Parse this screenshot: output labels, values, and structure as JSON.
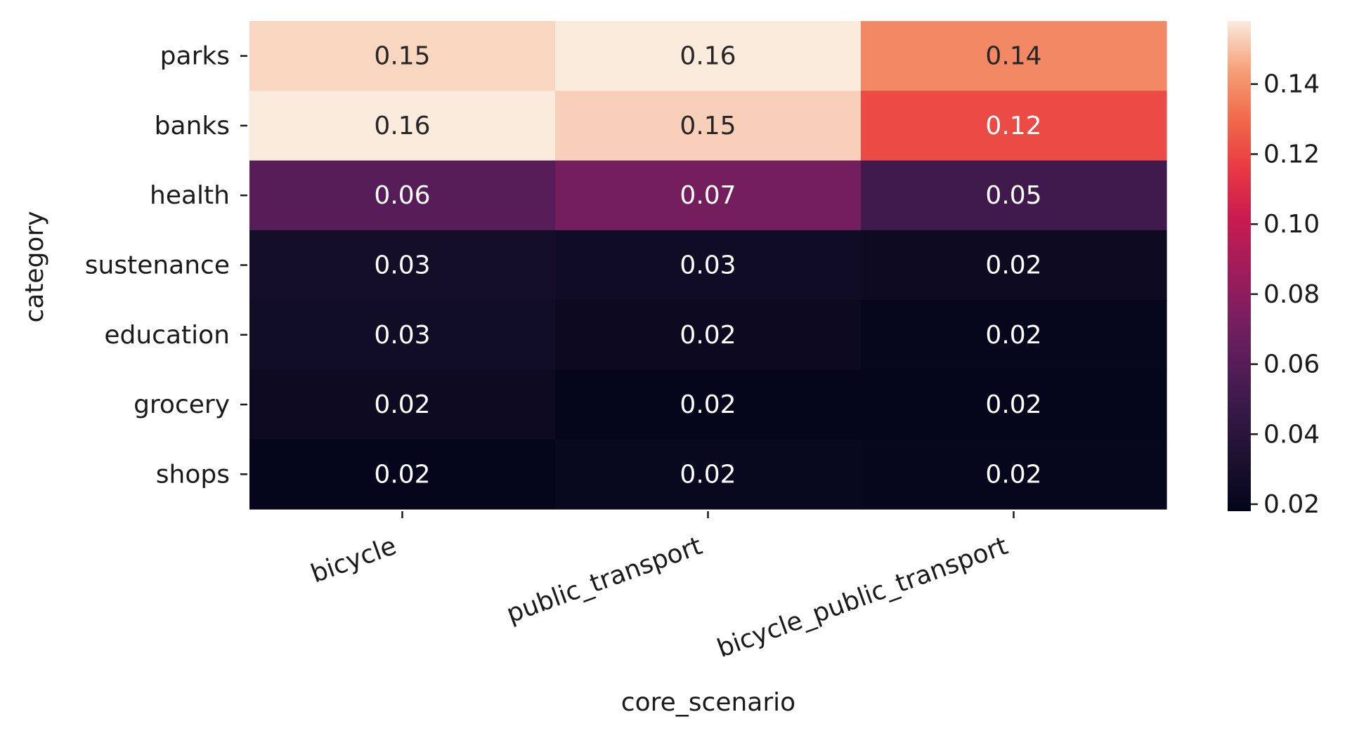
{
  "chart_data": {
    "type": "heatmap",
    "xlabel": "core_scenario",
    "ylabel": "category",
    "x_categories": [
      "bicycle",
      "public_transport",
      "bicycle_public_transport"
    ],
    "y_categories": [
      "parks",
      "banks",
      "health",
      "sustenance",
      "education",
      "grocery",
      "shops"
    ],
    "values": [
      [
        0.154,
        0.158,
        0.138
      ],
      [
        0.158,
        0.153,
        0.121
      ],
      [
        0.06,
        0.071,
        0.051
      ],
      [
        0.028,
        0.026,
        0.024
      ],
      [
        0.027,
        0.023,
        0.02
      ],
      [
        0.024,
        0.019,
        0.019
      ],
      [
        0.019,
        0.021,
        0.02
      ]
    ],
    "annotations": [
      [
        "0.15",
        "0.16",
        "0.14"
      ],
      [
        "0.16",
        "0.15",
        "0.12"
      ],
      [
        "0.06",
        "0.07",
        "0.05"
      ],
      [
        "0.03",
        "0.03",
        "0.02"
      ],
      [
        "0.03",
        "0.02",
        "0.02"
      ],
      [
        "0.02",
        "0.02",
        "0.02"
      ],
      [
        "0.02",
        "0.02",
        "0.02"
      ]
    ],
    "colormap": "rocket",
    "vmin": 0.018,
    "vmax": 0.158,
    "colorbar_ticks": [
      0.02,
      0.04,
      0.06,
      0.08,
      0.1,
      0.12,
      0.14
    ],
    "colorbar_tick_labels": [
      "0.02",
      "0.04",
      "0.06",
      "0.08",
      "0.10",
      "0.12",
      "0.14"
    ],
    "grid": false,
    "legend": "colorbar-right"
  }
}
